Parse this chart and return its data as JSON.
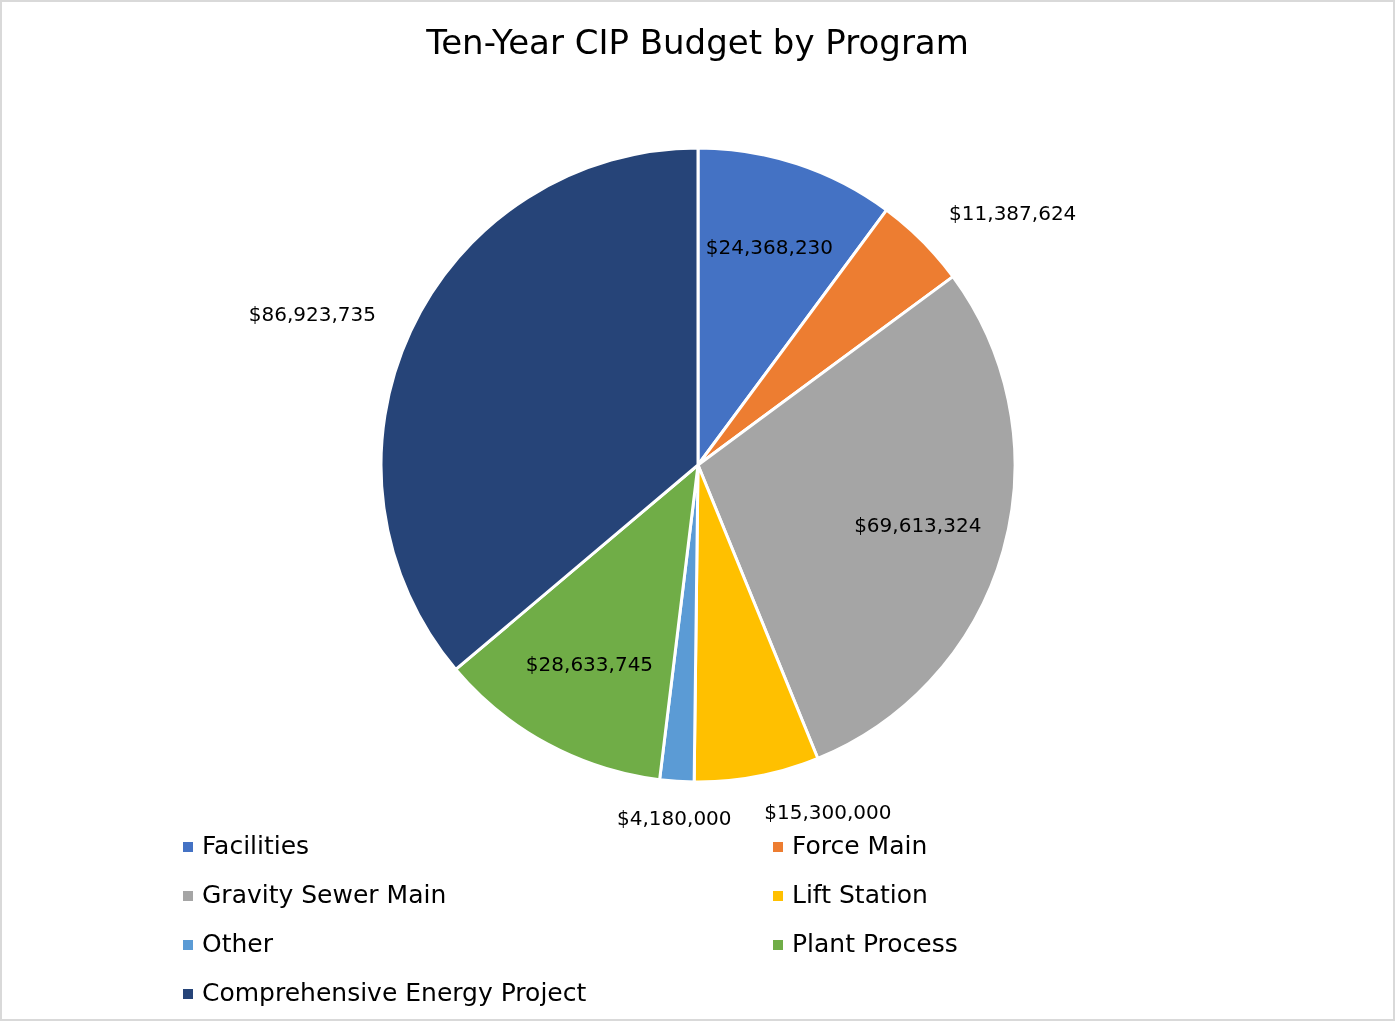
{
  "chart_data": {
    "type": "pie",
    "title": "Ten-Year CIP Budget by Program",
    "categories": [
      "Facilities",
      "Force Main",
      "Gravity Sewer Main",
      "Lift Station",
      "Other",
      "Plant Process",
      "Comprehensive Energy Project"
    ],
    "values": [
      24368230,
      11387624,
      69613324,
      15300000,
      4180000,
      28633745,
      86923735
    ],
    "colors": [
      "#4472c4",
      "#ed7d31",
      "#a5a5a5",
      "#ffc000",
      "#5b9bd5",
      "#70ad47",
      "#264478"
    ],
    "value_labels": [
      "$24,368,230",
      "$11,387,624",
      "$69,613,324",
      "$15,300,000",
      "$4,180,000",
      "$28,633,745",
      "$86,923,735"
    ],
    "legend": "bottom"
  }
}
